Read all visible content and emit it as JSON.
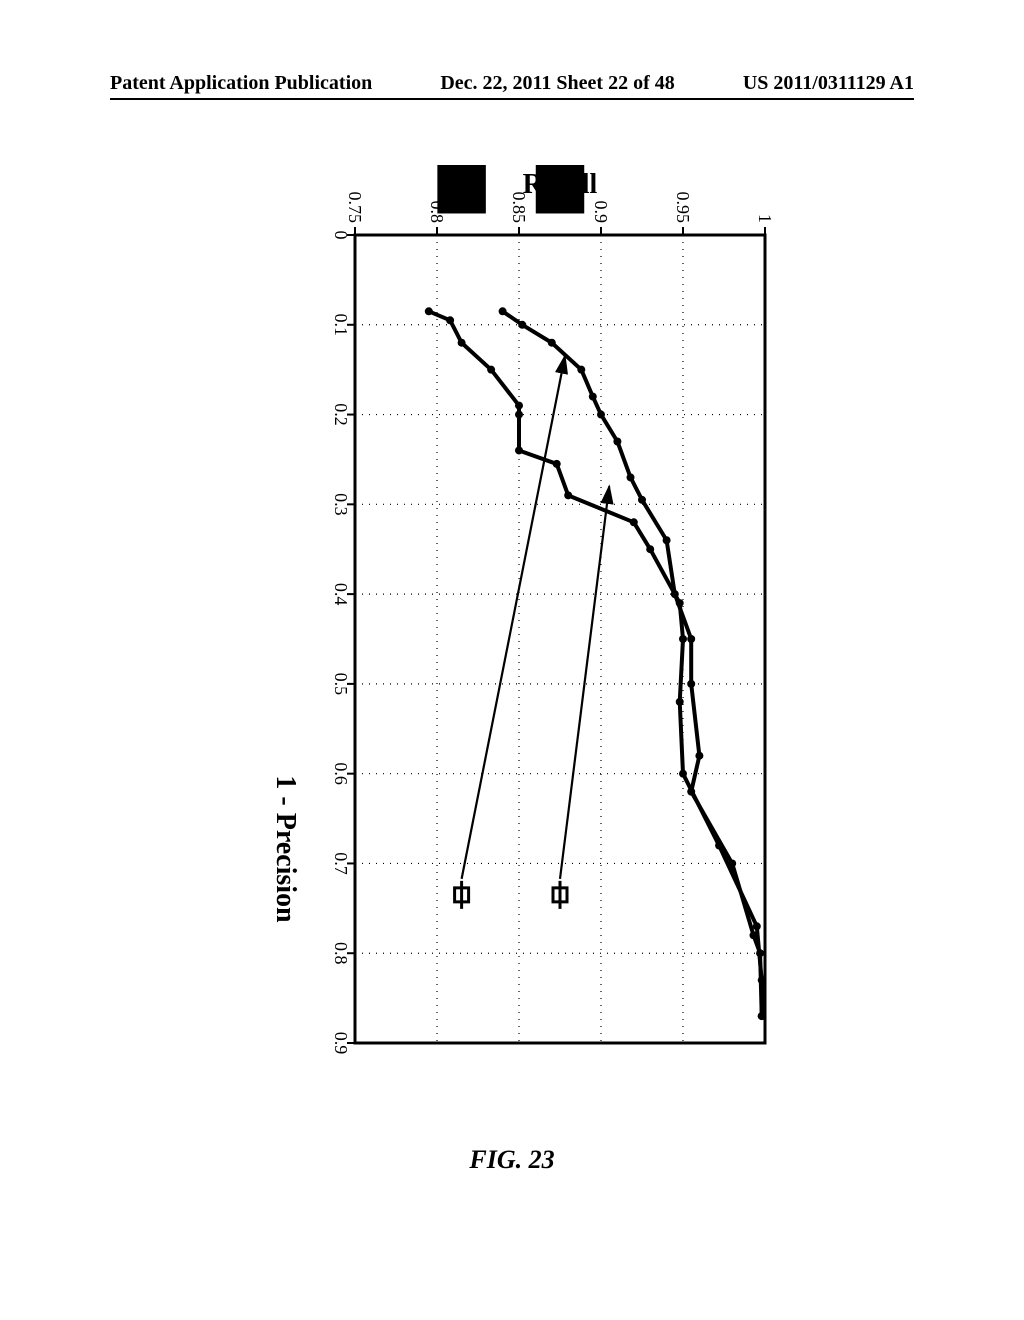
{
  "header": {
    "left": "Patent Application Publication",
    "center": "Dec. 22, 2011  Sheet 22 of 48",
    "right": "US 2011/0311129 A1"
  },
  "caption": "FIG. 23",
  "chart": {
    "type": "line",
    "orientation": "rotated-90",
    "xlabel": "1 - Precision",
    "ylabel": "Recall",
    "label_fontsize": 28,
    "tick_fontsize": 18,
    "xlim": [
      0,
      0.9
    ],
    "ylim": [
      0.75,
      1.0
    ],
    "xticks": [
      0,
      0.1,
      0.2,
      0.3,
      0.4,
      0.5,
      0.6,
      0.7,
      0.8,
      0.9
    ],
    "yticks": [
      0.75,
      0.8,
      0.85,
      0.9,
      0.95,
      1.0
    ],
    "grid_color": "#000000",
    "grid_dash": "1,6",
    "background_color": "#ffffff",
    "line_color": "#000000",
    "line_width": 4,
    "marker": "circle",
    "marker_size": 4,
    "series": [
      {
        "name": "curve-top",
        "points": [
          [
            0.085,
            0.84
          ],
          [
            0.1,
            0.852
          ],
          [
            0.12,
            0.87
          ],
          [
            0.15,
            0.888
          ],
          [
            0.18,
            0.895
          ],
          [
            0.2,
            0.9
          ],
          [
            0.23,
            0.91
          ],
          [
            0.27,
            0.918
          ],
          [
            0.295,
            0.925
          ],
          [
            0.34,
            0.94
          ],
          [
            0.4,
            0.945
          ],
          [
            0.45,
            0.955
          ],
          [
            0.5,
            0.955
          ],
          [
            0.58,
            0.96
          ],
          [
            0.62,
            0.955
          ],
          [
            0.7,
            0.98
          ],
          [
            0.78,
            0.993
          ],
          [
            0.8,
            0.997
          ],
          [
            0.87,
            0.998
          ]
        ]
      },
      {
        "name": "curve-bottom",
        "points": [
          [
            0.085,
            0.795
          ],
          [
            0.095,
            0.808
          ],
          [
            0.12,
            0.815
          ],
          [
            0.15,
            0.833
          ],
          [
            0.19,
            0.85
          ],
          [
            0.2,
            0.85
          ],
          [
            0.24,
            0.85
          ],
          [
            0.255,
            0.873
          ],
          [
            0.29,
            0.88
          ],
          [
            0.32,
            0.92
          ],
          [
            0.35,
            0.93
          ],
          [
            0.41,
            0.948
          ],
          [
            0.45,
            0.95
          ],
          [
            0.52,
            0.948
          ],
          [
            0.6,
            0.95
          ],
          [
            0.68,
            0.972
          ],
          [
            0.77,
            0.995
          ],
          [
            0.83,
            0.998
          ],
          [
            0.87,
            0.998
          ]
        ]
      }
    ],
    "legend": {
      "entries": [
        {
          "marker": "square-open",
          "thumb_x": 0.82,
          "thumb_y": 0.875,
          "arrow_to": [
            0.28,
            0.905
          ]
        },
        {
          "marker": "square-open",
          "thumb_x": 0.82,
          "thumb_y": 0.815,
          "arrow_to": [
            0.135,
            0.878
          ]
        }
      ],
      "marker_x": 0.735,
      "thumb_size": 0.06,
      "thumb_color": "#000000"
    }
  }
}
